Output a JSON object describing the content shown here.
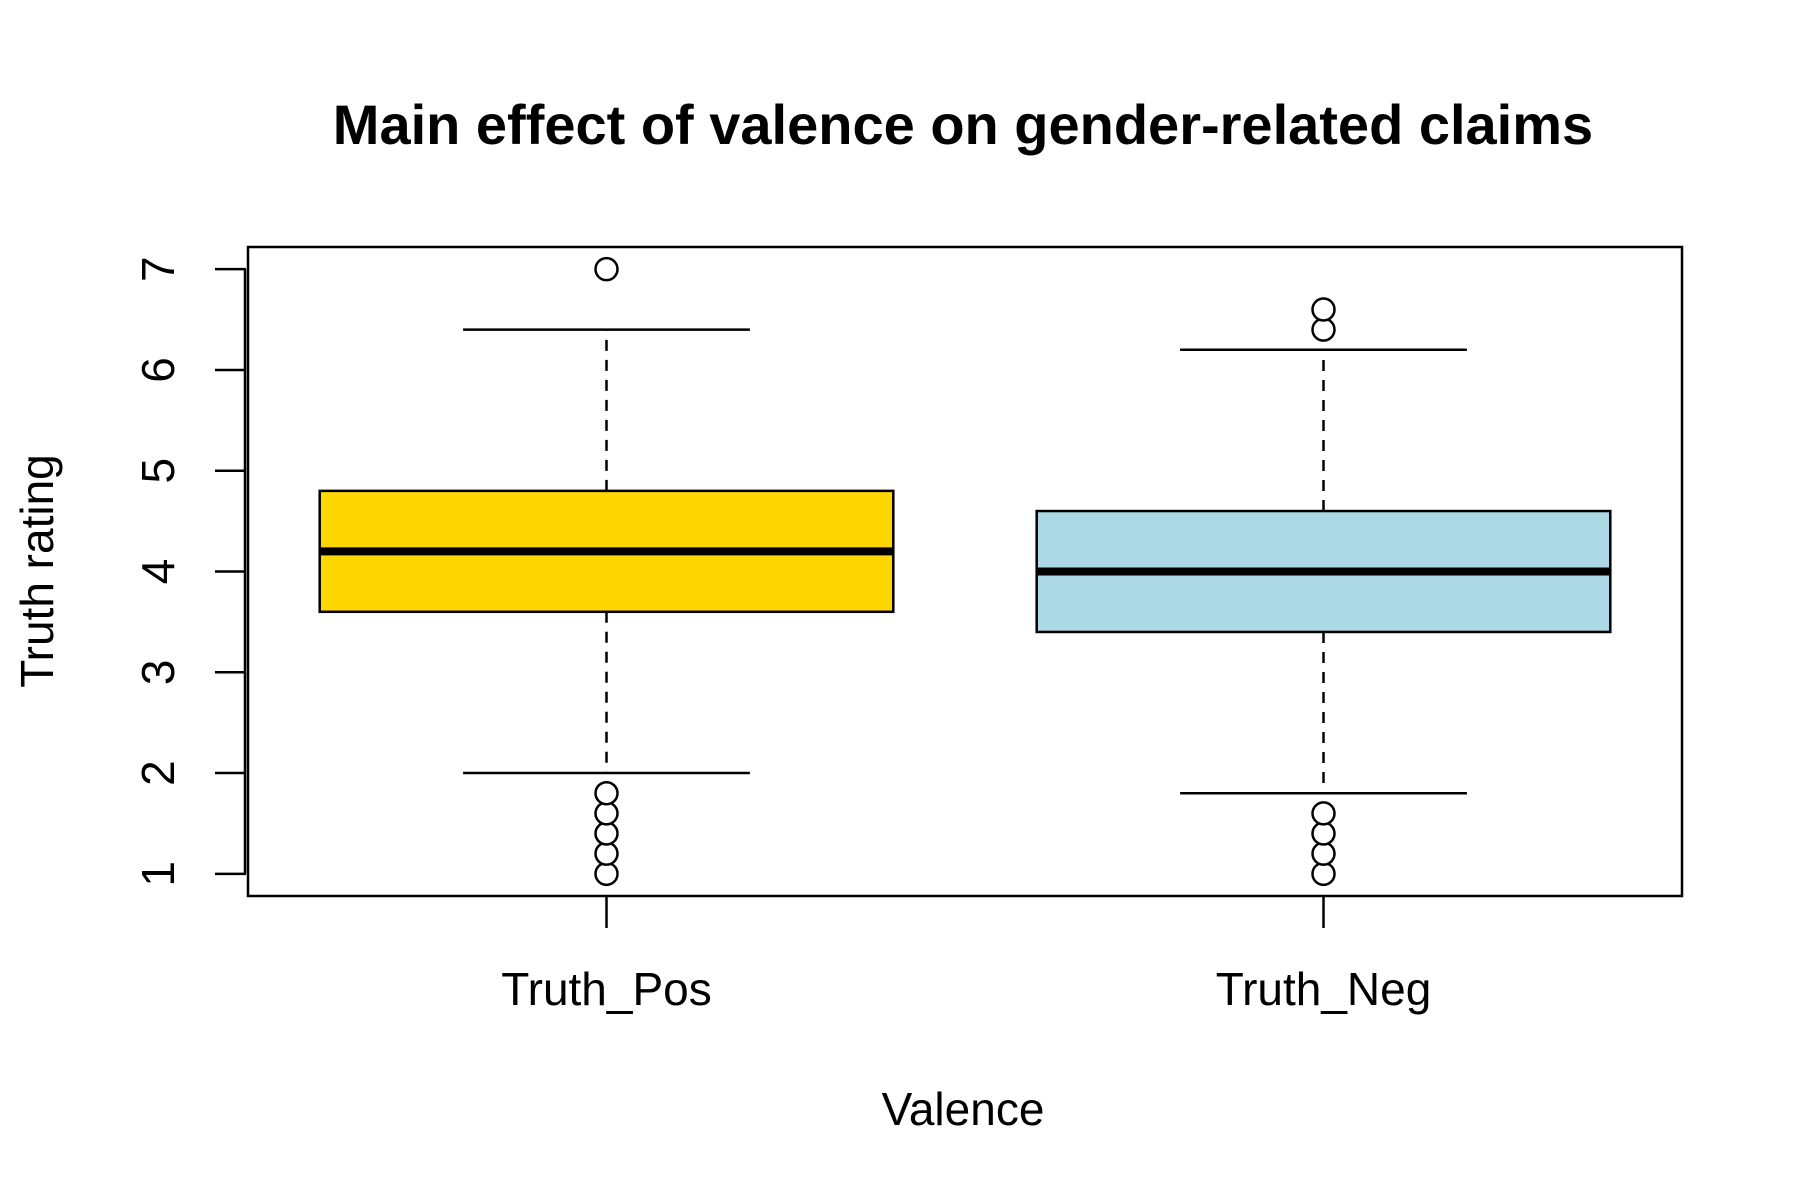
{
  "chart_data": {
    "type": "boxplot",
    "title": "Main effect of valence on gender-related claims",
    "xlabel": "Valence",
    "ylabel": "Truth rating",
    "ylim": [
      0.78,
      7.22
    ],
    "yticks": [
      1,
      2,
      3,
      4,
      5,
      6,
      7
    ],
    "grid": false,
    "categories": [
      "Truth_Pos",
      "Truth_Neg"
    ],
    "boxes": [
      {
        "category": "Truth_Pos",
        "color": "#FFD700",
        "whisker_low": 2.0,
        "q1": 3.6,
        "median": 4.2,
        "q3": 4.8,
        "whisker_high": 6.4,
        "outliers": [
          1.0,
          1.2,
          1.4,
          1.6,
          1.8,
          7.0
        ]
      },
      {
        "category": "Truth_Neg",
        "color": "#ADD8E6",
        "whisker_low": 1.8,
        "q1": 3.4,
        "median": 4.0,
        "q3": 4.6,
        "whisker_high": 6.2,
        "outliers": [
          1.0,
          1.2,
          1.4,
          1.6,
          6.4,
          6.6
        ]
      }
    ]
  }
}
